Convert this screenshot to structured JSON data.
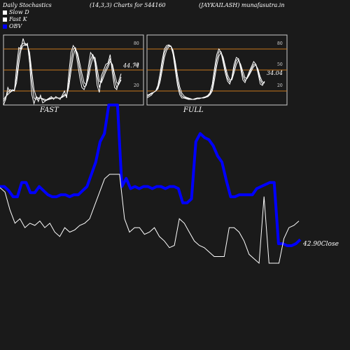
{
  "header": {
    "left": "Daily Stochastics",
    "params": "(14,3,3) Charts for 544160",
    "right": "(JAYKAILASH) munafasutra.in"
  },
  "legend": [
    {
      "label": "Slow  D",
      "color": "#ffffff"
    },
    {
      "label": "Fast K",
      "color": "#ffffff"
    },
    {
      "label": "OBV",
      "color": "#0000ff"
    }
  ],
  "colors": {
    "background": "#1a1a1a",
    "panel_border": "#cccccc",
    "level_line": "#c8781e",
    "stoch_line": "#ffffff",
    "obv": "#0000ff",
    "close": "#ffffff"
  },
  "chart_data": [
    {
      "type": "line",
      "panel": "FAST",
      "title": "FAST",
      "ylim": [
        0,
        100
      ],
      "levels": [
        20,
        50,
        80
      ],
      "level_labels": [
        "80",
        "50",
        "20"
      ],
      "last_value_label": "44.74",
      "series": [
        {
          "values": [
            0,
            8,
            25,
            18,
            22,
            20,
            55,
            82,
            80,
            95,
            85,
            88,
            60,
            15,
            2,
            12,
            5,
            14,
            3,
            5,
            8,
            10,
            12,
            8,
            12,
            10,
            8,
            14,
            20,
            10,
            45,
            75,
            85,
            80,
            60,
            40,
            25,
            22,
            30,
            55,
            75,
            70,
            60,
            28,
            18,
            42,
            50,
            58,
            60,
            72,
            45,
            25,
            22,
            35,
            44.74
          ]
        },
        {
          "values": [
            5,
            10,
            18,
            22,
            20,
            22,
            40,
            70,
            85,
            88,
            88,
            85,
            70,
            35,
            10,
            8,
            9,
            10,
            8,
            6,
            7,
            9,
            10,
            10,
            10,
            10,
            10,
            12,
            15,
            14,
            32,
            60,
            80,
            82,
            70,
            52,
            35,
            26,
            28,
            45,
            65,
            72,
            65,
            42,
            25,
            35,
            45,
            52,
            58,
            66,
            55,
            35,
            25,
            30,
            40
          ]
        },
        {
          "values": [
            8,
            12,
            15,
            18,
            20,
            21,
            32,
            58,
            78,
            85,
            86,
            85,
            75,
            48,
            22,
            12,
            10,
            10,
            9,
            8,
            7,
            8,
            9,
            10,
            10,
            10,
            10,
            11,
            13,
            14,
            25,
            48,
            70,
            80,
            74,
            60,
            45,
            32,
            29,
            38,
            55,
            68,
            68,
            52,
            34,
            32,
            40,
            48,
            54,
            62,
            58,
            44,
            32,
            30,
            36
          ]
        }
      ]
    },
    {
      "type": "line",
      "panel": "FULL",
      "title": "FULL",
      "ylim": [
        0,
        100
      ],
      "levels": [
        20,
        50,
        80
      ],
      "level_labels": [
        "80",
        "50",
        "20"
      ],
      "last_value_label": "34.04",
      "series": [
        {
          "values": [
            10,
            12,
            14,
            18,
            20,
            28,
            45,
            65,
            80,
            85,
            86,
            84,
            72,
            50,
            28,
            15,
            10,
            10,
            9,
            8,
            8,
            8,
            9,
            10,
            10,
            10,
            11,
            12,
            14,
            18,
            30,
            52,
            72,
            80,
            75,
            60,
            45,
            34,
            30,
            40,
            58,
            68,
            66,
            52,
            36,
            32,
            40,
            48,
            55,
            62,
            58,
            45,
            30,
            28,
            34.04
          ]
        },
        {
          "values": [
            12,
            14,
            16,
            18,
            20,
            25,
            38,
            58,
            75,
            82,
            85,
            84,
            76,
            56,
            34,
            20,
            13,
            11,
            10,
            9,
            8,
            8,
            8,
            9,
            10,
            10,
            10,
            11,
            13,
            16,
            24,
            44,
            64,
            76,
            76,
            64,
            50,
            38,
            33,
            37,
            52,
            64,
            66,
            56,
            42,
            35,
            38,
            45,
            52,
            58,
            58,
            48,
            36,
            30,
            32
          ]
        },
        {
          "values": [
            14,
            15,
            17,
            18,
            20,
            23,
            33,
            50,
            68,
            78,
            83,
            84,
            78,
            62,
            42,
            26,
            17,
            13,
            11,
            10,
            9,
            8,
            8,
            9,
            9,
            10,
            10,
            11,
            12,
            15,
            20,
            36,
            56,
            70,
            75,
            68,
            55,
            43,
            36,
            36,
            46,
            58,
            64,
            58,
            48,
            39,
            38,
            43,
            49,
            55,
            57,
            51,
            40,
            33,
            32
          ]
        }
      ]
    },
    {
      "type": "line",
      "panel": "main",
      "series": [
        {
          "name": "OBV",
          "values": [
            60,
            60,
            58,
            55,
            55,
            62,
            62,
            57,
            57,
            60,
            58,
            56,
            55,
            55,
            56,
            56,
            55,
            56,
            56,
            58,
            60,
            66,
            72,
            82,
            86,
            100,
            100,
            100,
            60,
            64,
            59,
            60,
            59,
            60,
            60,
            59,
            60,
            60,
            59,
            60,
            60,
            59,
            52,
            52,
            54,
            82,
            86,
            84,
            83,
            80,
            75,
            72,
            63,
            55,
            55,
            56,
            56,
            56,
            56,
            59,
            60,
            61,
            62,
            62,
            32,
            32,
            31,
            31,
            32,
            34
          ]
        },
        {
          "name": "Close",
          "values": [
            34,
            32,
            24,
            18,
            20,
            16,
            18,
            17,
            19,
            16,
            18,
            14,
            12,
            16,
            14,
            15,
            17,
            18,
            20,
            26,
            32,
            38,
            40,
            40,
            40,
            20,
            14,
            16,
            16,
            13,
            14,
            16,
            12,
            10,
            7,
            8,
            20,
            18,
            14,
            10,
            8,
            7,
            5,
            3,
            3,
            3,
            16,
            16,
            14,
            10,
            4,
            2,
            0,
            30,
            0,
            0,
            0,
            11.1,
            16,
            17,
            19
          ]
        }
      ],
      "close_label": "42.90Close"
    }
  ]
}
